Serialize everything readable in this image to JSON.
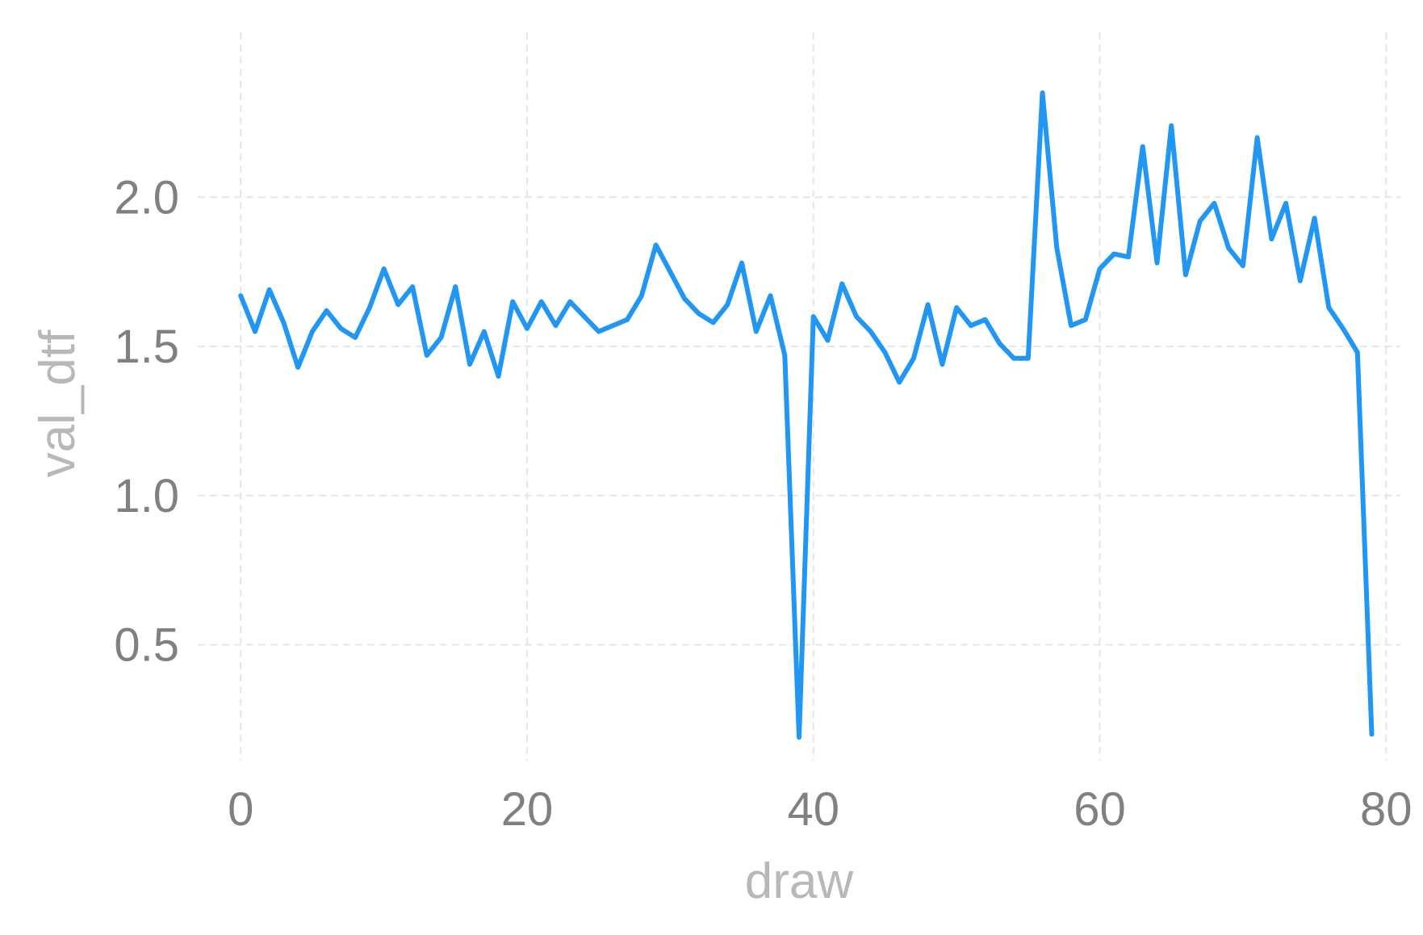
{
  "chart_data": {
    "type": "line",
    "xlabel": "draw",
    "ylabel": "val_dtf",
    "xlim": [
      -3,
      81
    ],
    "ylim": [
      0.09,
      2.58
    ],
    "x_ticks": [
      0,
      20,
      40,
      60,
      80
    ],
    "y_ticks": [
      0.5,
      1.0,
      1.5,
      2.0
    ],
    "x_tick_labels": [
      "0",
      "20",
      "40",
      "60",
      "80"
    ],
    "y_tick_labels": [
      "0.5",
      "1.0",
      "1.5",
      "2.0"
    ],
    "grid": true,
    "legend": "none",
    "colors": {
      "series": "#2196F3",
      "grid": "#e6e6e6",
      "tick": "#808080",
      "title": "#b8b8b8"
    },
    "series": [
      {
        "x": [
          0,
          1,
          2,
          3,
          4,
          5,
          6,
          7,
          8,
          9,
          10,
          11,
          12,
          13,
          14,
          15,
          16,
          17,
          18,
          19,
          20,
          21,
          22,
          23,
          24,
          25,
          26,
          27,
          28,
          29,
          30,
          31,
          32,
          33,
          34,
          35,
          36,
          37,
          38,
          39,
          40,
          41,
          42,
          43,
          44,
          45,
          46,
          47,
          48,
          49,
          50,
          51,
          52,
          53,
          54,
          55,
          56,
          57,
          58,
          59,
          60,
          61,
          62,
          63,
          64,
          65,
          66,
          67,
          68,
          69,
          70,
          71,
          72,
          73,
          74,
          75,
          76,
          77,
          78,
          79
        ],
        "values": [
          1.67,
          1.55,
          1.69,
          1.58,
          1.43,
          1.55,
          1.62,
          1.56,
          1.53,
          1.63,
          1.76,
          1.64,
          1.7,
          1.47,
          1.53,
          1.7,
          1.44,
          1.55,
          1.4,
          1.65,
          1.56,
          1.65,
          1.57,
          1.65,
          1.6,
          1.55,
          1.57,
          1.59,
          1.67,
          1.84,
          1.75,
          1.66,
          1.61,
          1.58,
          1.64,
          1.78,
          1.55,
          1.67,
          1.47,
          0.19,
          1.6,
          1.52,
          1.71,
          1.6,
          1.55,
          1.48,
          1.38,
          1.46,
          1.64,
          1.44,
          1.63,
          1.57,
          1.59,
          1.51,
          1.46,
          1.46,
          2.35,
          1.83,
          1.57,
          1.59,
          1.76,
          1.81,
          1.8,
          2.17,
          1.78,
          2.24,
          1.74,
          1.92,
          1.98,
          1.83,
          1.77,
          2.2,
          1.86,
          1.98,
          1.72,
          1.93,
          1.63,
          1.56,
          1.48,
          0.2
        ]
      }
    ]
  }
}
